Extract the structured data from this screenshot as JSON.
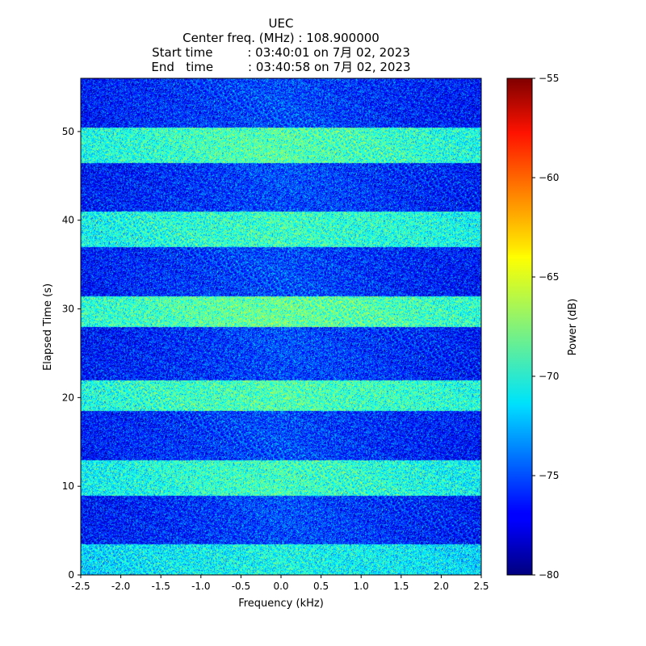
{
  "chart_data": {
    "type": "heatmap",
    "title_lines": [
      "UEC",
      "Center freq. (MHz) : 108.900000",
      "Start time         : 03:40:01 on 7月 02, 2023",
      "End   time         : 03:40:58 on 7月 02, 2023"
    ],
    "xlabel": "Frequency (kHz)",
    "ylabel": "Elapsed Time (s)",
    "xlim": [
      -2.5,
      2.5
    ],
    "ylim": [
      0,
      56
    ],
    "x_ticks": [
      -2.5,
      -2.0,
      -1.5,
      -1.0,
      -0.5,
      0.0,
      0.5,
      1.0,
      1.5,
      2.0,
      2.5
    ],
    "x_tick_labels": [
      "-2.5",
      "-2.0",
      "-1.5",
      "-1.0",
      "-0.5",
      "0.0",
      "0.5",
      "1.0",
      "1.5",
      "2.0",
      "2.5"
    ],
    "y_ticks": [
      0,
      10,
      20,
      30,
      40,
      50
    ],
    "y_tick_labels": [
      "0",
      "10",
      "20",
      "30",
      "40",
      "50"
    ],
    "colormap": "jet",
    "colorbar": {
      "label": "Power (dB)",
      "range": [
        -80,
        -55
      ],
      "ticks": [
        -55,
        -60,
        -65,
        -70,
        -75,
        -80
      ],
      "tick_labels": [
        "−55",
        "−60",
        "−65",
        "−70",
        "−75",
        "−80"
      ]
    },
    "noise_floor_db": -75,
    "bands": [
      {
        "t_start": 0,
        "t_end": 3.5,
        "power_db": -70
      },
      {
        "t_start": 9,
        "t_end": 13,
        "power_db": -69
      },
      {
        "t_start": 18.5,
        "t_end": 22,
        "power_db": -68.5
      },
      {
        "t_start": 28,
        "t_end": 31.5,
        "power_db": -68
      },
      {
        "t_start": 37,
        "t_end": 41,
        "power_db": -69
      },
      {
        "t_start": 46.5,
        "t_end": 50.5,
        "power_db": -68.5
      }
    ]
  }
}
